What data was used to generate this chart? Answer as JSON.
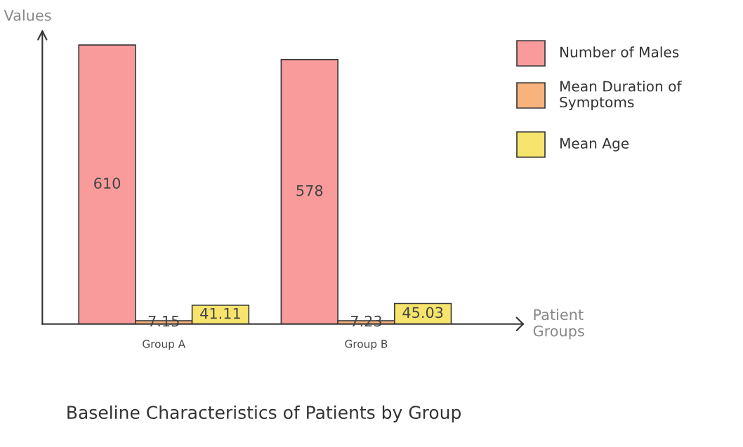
{
  "chart_data": {
    "type": "bar",
    "title": "Baseline Characteristics of Patients by Group",
    "xlabel": "Patient Groups",
    "ylabel": "Values",
    "categories": [
      "Group A",
      "Group B"
    ],
    "series": [
      {
        "name": "Number of Males",
        "color": "#f99b9b",
        "values": [
          610,
          578
        ]
      },
      {
        "name": "Mean Duration of Symptoms",
        "color": "#f8b27c",
        "values": [
          7.15,
          7.23
        ]
      },
      {
        "name": "Mean Age",
        "color": "#f6e46c",
        "values": [
          41.11,
          45.03
        ]
      }
    ],
    "data_labels": true,
    "legend": "top right",
    "grid": false
  }
}
